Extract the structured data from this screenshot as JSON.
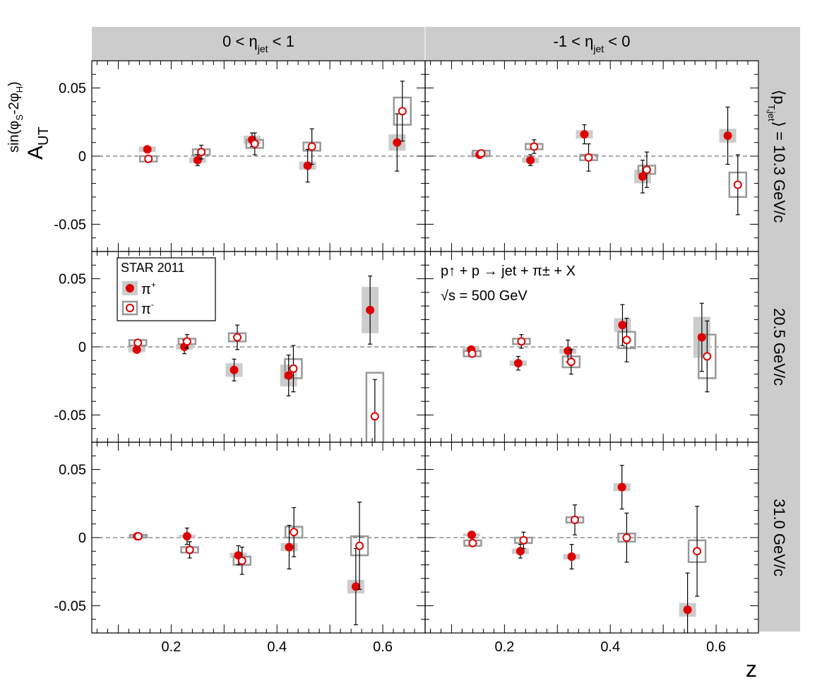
{
  "figure": {
    "col_headers": [
      {
        "pre": "0 < η",
        "sub": "jet",
        "post": " < 1"
      },
      {
        "pre": "-1 < η",
        "sub": "jet",
        "post": " < 0"
      }
    ],
    "row_label_prefix": "⟨p",
    "row_label_prefix_sub": "T,jet",
    "row_labels": [
      "⟩ = 10.3 GeV/c",
      "20.5 GeV/c",
      "31.0 GeV/c"
    ],
    "y_title": {
      "main": "A",
      "sub": "UT",
      "sup": "sin(φ",
      "sup_s": "S",
      "sup_mid": "-2φ",
      "sup_h": "H",
      "sup_end": ")"
    },
    "x_title": "z",
    "legend": {
      "title": "STAR 2011",
      "entries": [
        {
          "symbol": "filled",
          "label": "π",
          "sup": "+"
        },
        {
          "symbol": "open",
          "label": "π",
          "sup": "-"
        }
      ]
    },
    "annotation_line1": "p↑ + p → jet + π± + X",
    "annotation_line2": "√s = 500 GeV",
    "colors": {
      "marker": "#dd0000",
      "band_fill": "#cccccc",
      "band_stroke": "#999999",
      "header_bg": "#cccccc"
    }
  },
  "chart_data": {
    "type": "scatter",
    "x_label": "z",
    "y_label": "A_UT^sin(φS-2φH)",
    "xlim": [
      0.05,
      0.68
    ],
    "ylim": [
      -0.07,
      0.07
    ],
    "x_ticks": [
      "0.2",
      "0.4",
      "0.6"
    ],
    "y_ticks": [
      "-0.05",
      "0",
      "0.05"
    ],
    "panels": [
      {
        "row": 0,
        "col": 0,
        "pi_plus": [
          {
            "z": 0.155,
            "y": 0.005,
            "err": 0.002,
            "sys": 0.002
          },
          {
            "z": 0.25,
            "y": -0.003,
            "err": 0.004,
            "sys": 0.002
          },
          {
            "z": 0.353,
            "y": 0.012,
            "err": 0.005,
            "sys": 0.003
          },
          {
            "z": 0.458,
            "y": -0.007,
            "err": 0.012,
            "sys": 0.003
          },
          {
            "z": 0.627,
            "y": 0.01,
            "err": 0.021,
            "sys": 0.006
          }
        ],
        "pi_minus": [
          {
            "z": 0.157,
            "y": -0.002,
            "err": 0.002,
            "sys": 0.002
          },
          {
            "z": 0.257,
            "y": 0.003,
            "err": 0.005,
            "sys": 0.002
          },
          {
            "z": 0.358,
            "y": 0.009,
            "err": 0.008,
            "sys": 0.003
          },
          {
            "z": 0.466,
            "y": 0.007,
            "err": 0.013,
            "sys": 0.003
          },
          {
            "z": 0.637,
            "y": 0.033,
            "err": 0.022,
            "sys": 0.01
          }
        ]
      },
      {
        "row": 0,
        "col": 1,
        "pi_plus": [
          {
            "z": 0.153,
            "y": 0.001,
            "err": 0.002,
            "sys": 0.002
          },
          {
            "z": 0.249,
            "y": -0.003,
            "err": 0.004,
            "sys": 0.002
          },
          {
            "z": 0.351,
            "y": 0.016,
            "err": 0.007,
            "sys": 0.003
          },
          {
            "z": 0.461,
            "y": -0.015,
            "err": 0.012,
            "sys": 0.005
          },
          {
            "z": 0.622,
            "y": 0.015,
            "err": 0.021,
            "sys": 0.005
          }
        ],
        "pi_minus": [
          {
            "z": 0.156,
            "y": 0.002,
            "err": 0.002,
            "sys": 0.002
          },
          {
            "z": 0.256,
            "y": 0.007,
            "err": 0.005,
            "sys": 0.002
          },
          {
            "z": 0.359,
            "y": -0.001,
            "err": 0.01,
            "sys": 0.002
          },
          {
            "z": 0.469,
            "y": -0.01,
            "err": 0.013,
            "sys": 0.003
          },
          {
            "z": 0.641,
            "y": -0.021,
            "err": 0.022,
            "sys": 0.009
          }
        ]
      },
      {
        "row": 1,
        "col": 0,
        "pi_plus": [
          {
            "z": 0.135,
            "y": -0.002,
            "err": 0.002,
            "sys": 0.002
          },
          {
            "z": 0.225,
            "y": -0.0,
            "err": 0.005,
            "sys": 0.002
          },
          {
            "z": 0.319,
            "y": -0.017,
            "err": 0.008,
            "sys": 0.005
          },
          {
            "z": 0.422,
            "y": -0.021,
            "err": 0.015,
            "sys": 0.008
          },
          {
            "z": 0.576,
            "y": 0.027,
            "err": 0.025,
            "sys": 0.017
          }
        ],
        "pi_minus": [
          {
            "z": 0.137,
            "y": 0.003,
            "err": 0.002,
            "sys": 0.002
          },
          {
            "z": 0.23,
            "y": 0.004,
            "err": 0.005,
            "sys": 0.002
          },
          {
            "z": 0.325,
            "y": 0.007,
            "err": 0.009,
            "sys": 0.003
          },
          {
            "z": 0.431,
            "y": -0.016,
            "err": 0.017,
            "sys": 0.007
          },
          {
            "z": 0.585,
            "y": -0.051,
            "err": 0.027,
            "sys": 0.032
          }
        ]
      },
      {
        "row": 1,
        "col": 1,
        "pi_plus": [
          {
            "z": 0.137,
            "y": -0.002,
            "err": 0.002,
            "sys": 0.002
          },
          {
            "z": 0.226,
            "y": -0.012,
            "err": 0.005,
            "sys": 0.002
          },
          {
            "z": 0.32,
            "y": -0.003,
            "err": 0.008,
            "sys": 0.002
          },
          {
            "z": 0.423,
            "y": 0.016,
            "err": 0.015,
            "sys": 0.005
          },
          {
            "z": 0.573,
            "y": 0.007,
            "err": 0.025,
            "sys": 0.015
          }
        ],
        "pi_minus": [
          {
            "z": 0.139,
            "y": -0.005,
            "err": 0.002,
            "sys": 0.002
          },
          {
            "z": 0.232,
            "y": 0.004,
            "err": 0.005,
            "sys": 0.002
          },
          {
            "z": 0.326,
            "y": -0.011,
            "err": 0.009,
            "sys": 0.004
          },
          {
            "z": 0.431,
            "y": 0.005,
            "err": 0.016,
            "sys": 0.006
          },
          {
            "z": 0.583,
            "y": -0.007,
            "err": 0.026,
            "sys": 0.016
          }
        ]
      },
      {
        "row": 2,
        "col": 0,
        "pi_plus": [
          {
            "z": 0.136,
            "y": 0.001,
            "err": 0.001,
            "sys": 0.001
          },
          {
            "z": 0.23,
            "y": 0.001,
            "err": 0.006,
            "sys": 0.001
          },
          {
            "z": 0.327,
            "y": -0.013,
            "err": 0.007,
            "sys": 0.002
          },
          {
            "z": 0.423,
            "y": -0.007,
            "err": 0.016,
            "sys": 0.003
          },
          {
            "z": 0.549,
            "y": -0.036,
            "err": 0.028,
            "sys": 0.005
          }
        ],
        "pi_minus": [
          {
            "z": 0.138,
            "y": 0.001,
            "err": 0.001,
            "sys": 0.001
          },
          {
            "z": 0.235,
            "y": -0.009,
            "err": 0.006,
            "sys": 0.002
          },
          {
            "z": 0.334,
            "y": -0.017,
            "err": 0.01,
            "sys": 0.003
          },
          {
            "z": 0.432,
            "y": 0.004,
            "err": 0.018,
            "sys": 0.004
          },
          {
            "z": 0.556,
            "y": -0.006,
            "err": 0.032,
            "sys": 0.007
          }
        ]
      },
      {
        "row": 2,
        "col": 1,
        "pi_plus": [
          {
            "z": 0.138,
            "y": 0.002,
            "err": 0.002,
            "sys": 0.001
          },
          {
            "z": 0.23,
            "y": -0.01,
            "err": 0.005,
            "sys": 0.002
          },
          {
            "z": 0.327,
            "y": -0.014,
            "err": 0.009,
            "sys": 0.002
          },
          {
            "z": 0.422,
            "y": 0.037,
            "err": 0.016,
            "sys": 0.003
          },
          {
            "z": 0.546,
            "y": -0.053,
            "err": 0.027,
            "sys": 0.005
          }
        ],
        "pi_minus": [
          {
            "z": 0.14,
            "y": -0.004,
            "err": 0.002,
            "sys": 0.002
          },
          {
            "z": 0.236,
            "y": -0.002,
            "err": 0.006,
            "sys": 0.002
          },
          {
            "z": 0.333,
            "y": 0.013,
            "err": 0.011,
            "sys": 0.002
          },
          {
            "z": 0.431,
            "y": -0.0,
            "err": 0.018,
            "sys": 0.003
          },
          {
            "z": 0.564,
            "y": -0.01,
            "err": 0.033,
            "sys": 0.008
          }
        ]
      }
    ]
  }
}
